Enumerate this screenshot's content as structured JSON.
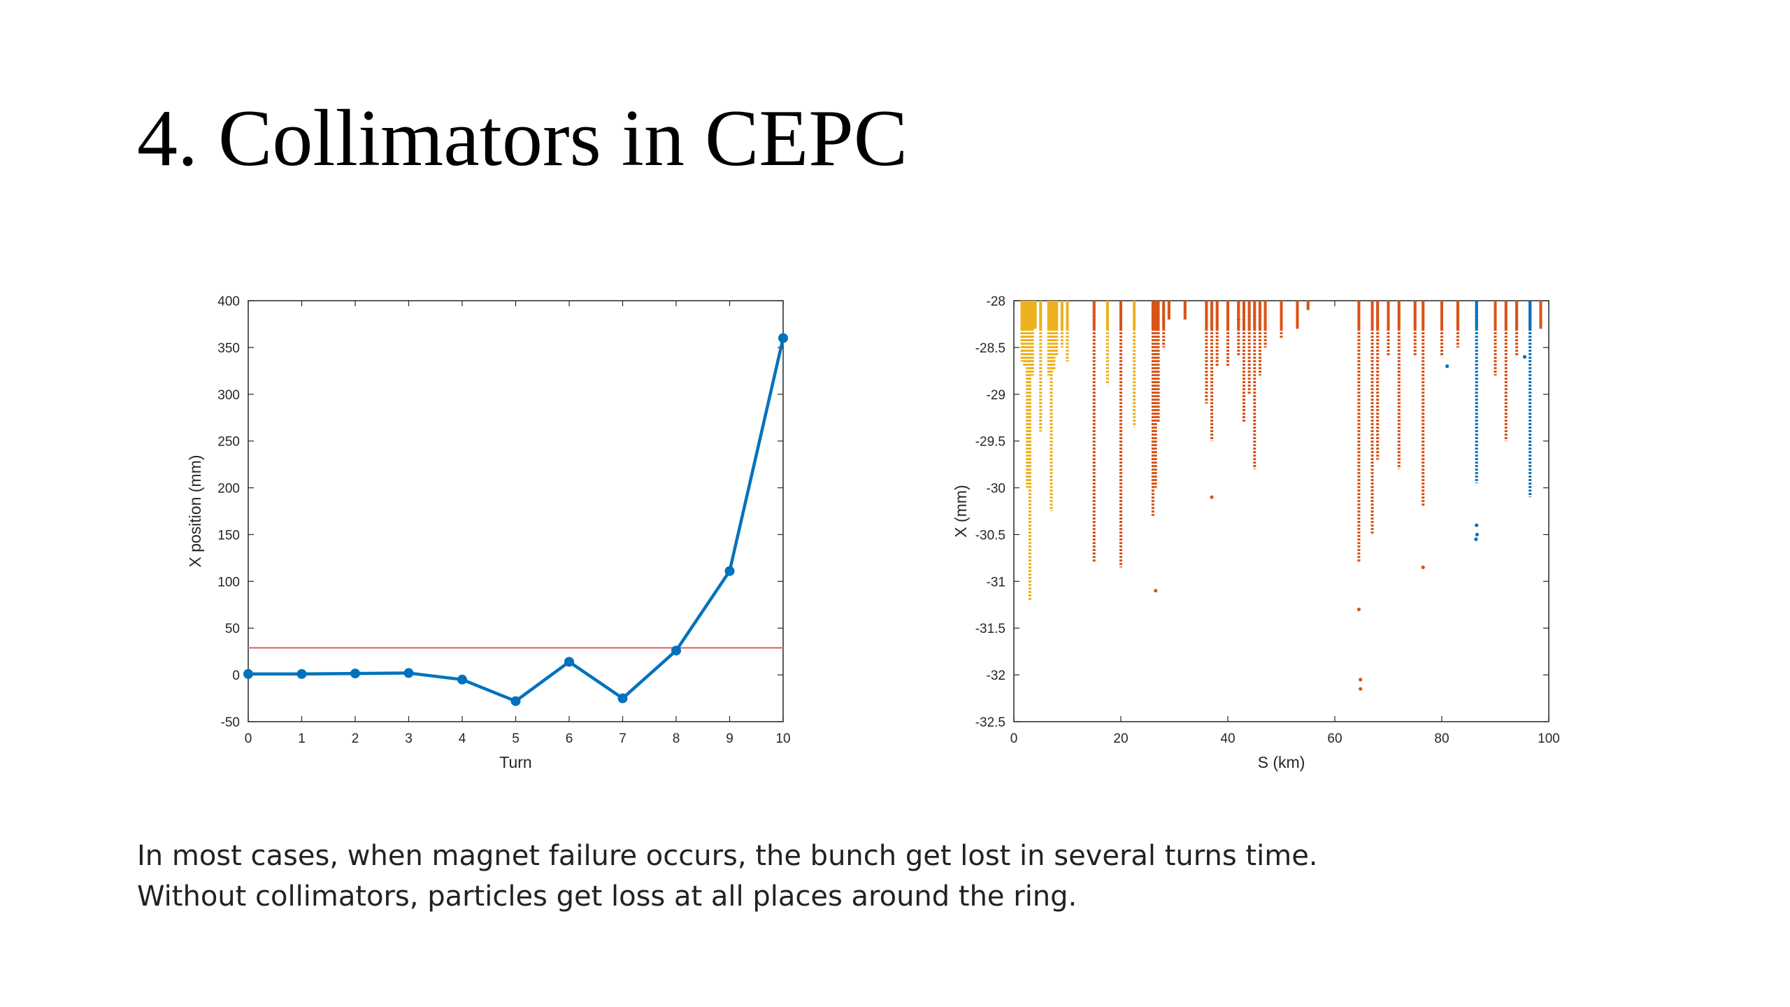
{
  "slide": {
    "title": "4. Collimators in CEPC",
    "caption_lines": [
      "In most cases, when magnet failure occurs, the bunch get lost in several turns time.",
      "Without collimators, particles get loss at all places around the ring."
    ]
  },
  "chart_data": [
    {
      "type": "line",
      "title": "",
      "xlabel": "Turn",
      "ylabel": "X position (mm)",
      "xlim": [
        0,
        10
      ],
      "ylim": [
        -50,
        400
      ],
      "xticks": [
        0,
        1,
        2,
        3,
        4,
        5,
        6,
        7,
        8,
        9,
        10
      ],
      "yticks": [
        -50,
        0,
        50,
        100,
        150,
        200,
        250,
        300,
        350,
        400
      ],
      "grid": false,
      "series": [
        {
          "color": "#0072BD",
          "marker": "circle",
          "x": [
            0,
            1,
            2,
            3,
            4,
            5,
            6,
            7,
            8,
            9,
            10
          ],
          "y": [
            1,
            1,
            1.5,
            2,
            -5,
            -28,
            14,
            -25,
            26,
            111,
            360
          ]
        }
      ],
      "reference_lines": [
        {
          "orientation": "horizontal",
          "y": 29,
          "color": "#E8787A"
        }
      ]
    },
    {
      "type": "scatter",
      "title": "",
      "xlabel": "S (km)",
      "ylabel": "X (mm)",
      "xlim": [
        0,
        100
      ],
      "ylim": [
        -32.5,
        -28
      ],
      "xticks": [
        0,
        20,
        40,
        60,
        80,
        100
      ],
      "yticks": [
        -32.5,
        -32,
        -31.5,
        -31,
        -30.5,
        -30,
        -29.5,
        -29,
        -28.5,
        -28
      ],
      "grid": false,
      "series": [
        {
          "color": "#EDB120",
          "x": [
            1.5,
            2.0,
            2.5,
            3.0,
            3.5,
            4.0,
            5.0,
            6.5,
            7.0,
            7.5,
            8.0,
            9.0,
            10.0,
            17.5,
            22.5
          ],
          "y_min": [
            -28.65,
            -28.7,
            -30.0,
            -31.2,
            -28.8,
            -28.3,
            -29.4,
            -28.8,
            -30.25,
            -28.75,
            -28.6,
            -28.5,
            -28.65,
            -28.9,
            -29.35
          ]
        },
        {
          "color": "#D95319",
          "x": [
            15.0,
            20.0,
            26.0,
            26.5,
            27.0,
            28.0,
            29.0,
            32.0,
            36.0,
            37.0,
            38.0,
            40.0,
            42.0,
            43.0,
            44.0,
            45.0,
            46.0,
            47.0,
            50.0,
            53.0,
            55.0,
            64.5,
            67.0,
            68.0,
            70.0,
            72.0,
            75.0,
            76.5,
            80.0,
            83.0,
            90.0,
            92.0,
            94.0,
            96.5,
            98.5
          ],
          "y_min": [
            -30.8,
            -30.85,
            -30.3,
            -30.0,
            -29.3,
            -28.5,
            -28.2,
            -28.2,
            -29.1,
            -29.5,
            -28.7,
            -28.7,
            -28.6,
            -29.3,
            -29.0,
            -29.8,
            -28.8,
            -28.5,
            -28.4,
            -28.3,
            -28.1,
            -30.8,
            -30.5,
            -29.7,
            -28.6,
            -29.8,
            -28.6,
            -30.2,
            -28.6,
            -28.5,
            -28.8,
            -29.5,
            -28.6,
            -28.5,
            -28.3
          ],
          "isolated_points": [
            [
              26.5,
              -31.1
            ],
            [
              37.0,
              -30.1
            ],
            [
              42.0,
              -28.2
            ],
            [
              64.5,
              -31.3
            ],
            [
              64.8,
              -32.05
            ],
            [
              64.8,
              -32.15
            ],
            [
              76.5,
              -30.85
            ]
          ]
        },
        {
          "color": "#0072BD",
          "x": [
            86.5,
            96.5
          ],
          "y_min": [
            -29.95,
            -30.1
          ],
          "isolated_points": [
            [
              86.5,
              -30.4
            ],
            [
              86.6,
              -30.5
            ],
            [
              86.4,
              -30.55
            ],
            [
              81.0,
              -28.7
            ],
            [
              95.5,
              -28.6
            ]
          ]
        }
      ]
    }
  ]
}
